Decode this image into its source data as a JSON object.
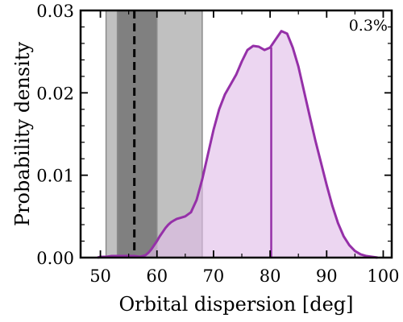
{
  "chart_data": {
    "type": "area",
    "xlabel": "Orbital dispersion [deg]",
    "ylabel": "Probability density",
    "xlim": [
      46.5,
      101.5
    ],
    "ylim": [
      0,
      0.03
    ],
    "x_ticks": [
      50,
      60,
      70,
      80,
      90,
      100
    ],
    "x_tick_labels": [
      "50",
      "60",
      "70",
      "80",
      "90",
      "100"
    ],
    "y_ticks": [
      0.0,
      0.01,
      0.02,
      0.03
    ],
    "y_tick_labels": [
      "0.00",
      "0.01",
      "0.02",
      "0.03"
    ],
    "annotation": "0.3%",
    "reference_value": 56,
    "inner_band": [
      53,
      60
    ],
    "outer_band": [
      51,
      68
    ],
    "median_value": 80.2,
    "median_density": 0.0255,
    "colors": {
      "line": "#9530a8",
      "fill": "#e0bde8",
      "inner_band": "#808080",
      "outer_band": "#c0c0c0",
      "reference": "#000000"
    },
    "x": [
      49.5,
      50,
      51,
      52,
      53,
      54,
      55,
      56,
      57,
      57.5,
      58,
      58.5,
      59,
      59.5,
      60,
      60.5,
      61,
      61.5,
      62,
      62.5,
      63,
      63.5,
      64,
      65,
      66,
      67,
      68,
      69,
      70,
      71,
      72,
      73,
      74,
      75,
      76,
      77,
      78,
      79,
      80,
      81,
      82,
      83,
      84,
      85,
      86,
      87,
      88,
      89,
      90,
      91,
      92,
      93,
      94,
      95,
      96,
      97,
      98,
      99
    ],
    "y": [
      0.0,
      0.0001,
      0.0001,
      0.0002,
      0.0002,
      0.0002,
      0.0002,
      0.0002,
      0.0001,
      0.0002,
      0.0003,
      0.0006,
      0.001,
      0.0015,
      0.002,
      0.0026,
      0.0031,
      0.0036,
      0.004,
      0.0043,
      0.0045,
      0.0047,
      0.0048,
      0.005,
      0.0055,
      0.007,
      0.0095,
      0.0125,
      0.0155,
      0.018,
      0.0198,
      0.021,
      0.0222,
      0.0238,
      0.0252,
      0.0257,
      0.0256,
      0.0252,
      0.0255,
      0.0265,
      0.0275,
      0.0272,
      0.0255,
      0.0232,
      0.0202,
      0.0172,
      0.0142,
      0.0115,
      0.0088,
      0.0063,
      0.0042,
      0.0026,
      0.0015,
      0.0008,
      0.0004,
      0.0002,
      0.0001,
      0.0
    ]
  }
}
